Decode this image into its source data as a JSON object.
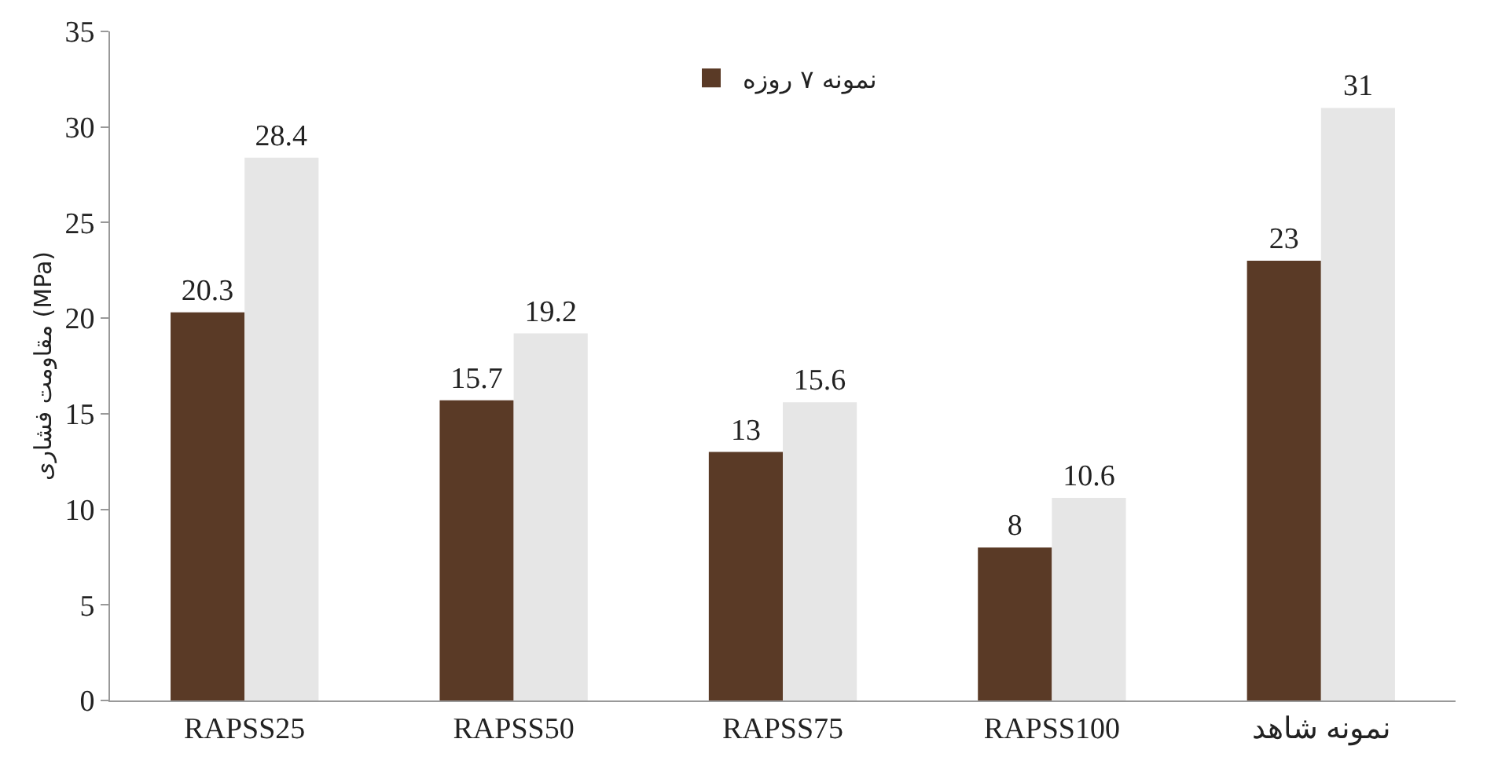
{
  "chart_data": {
    "type": "bar",
    "ylabel": "مقاومت فشاری (MPa)",
    "categories": [
      "RAPSS25",
      "RAPSS50",
      "RAPSS75",
      "RAPSS100",
      "نمونه شاهد"
    ],
    "series": [
      {
        "name": "نمونه ۷ روزه",
        "color": "#5a3a26",
        "values": [
          20.3,
          15.7,
          13,
          8,
          23
        ]
      },
      {
        "color": "#e6e6e6",
        "values": [
          28.4,
          19.2,
          15.6,
          10.6,
          31
        ]
      }
    ],
    "ylim": [
      0,
      35
    ],
    "yticks": [
      0,
      5,
      10,
      15,
      20,
      25,
      30,
      35
    ],
    "data_labels": true,
    "legend": "top"
  }
}
